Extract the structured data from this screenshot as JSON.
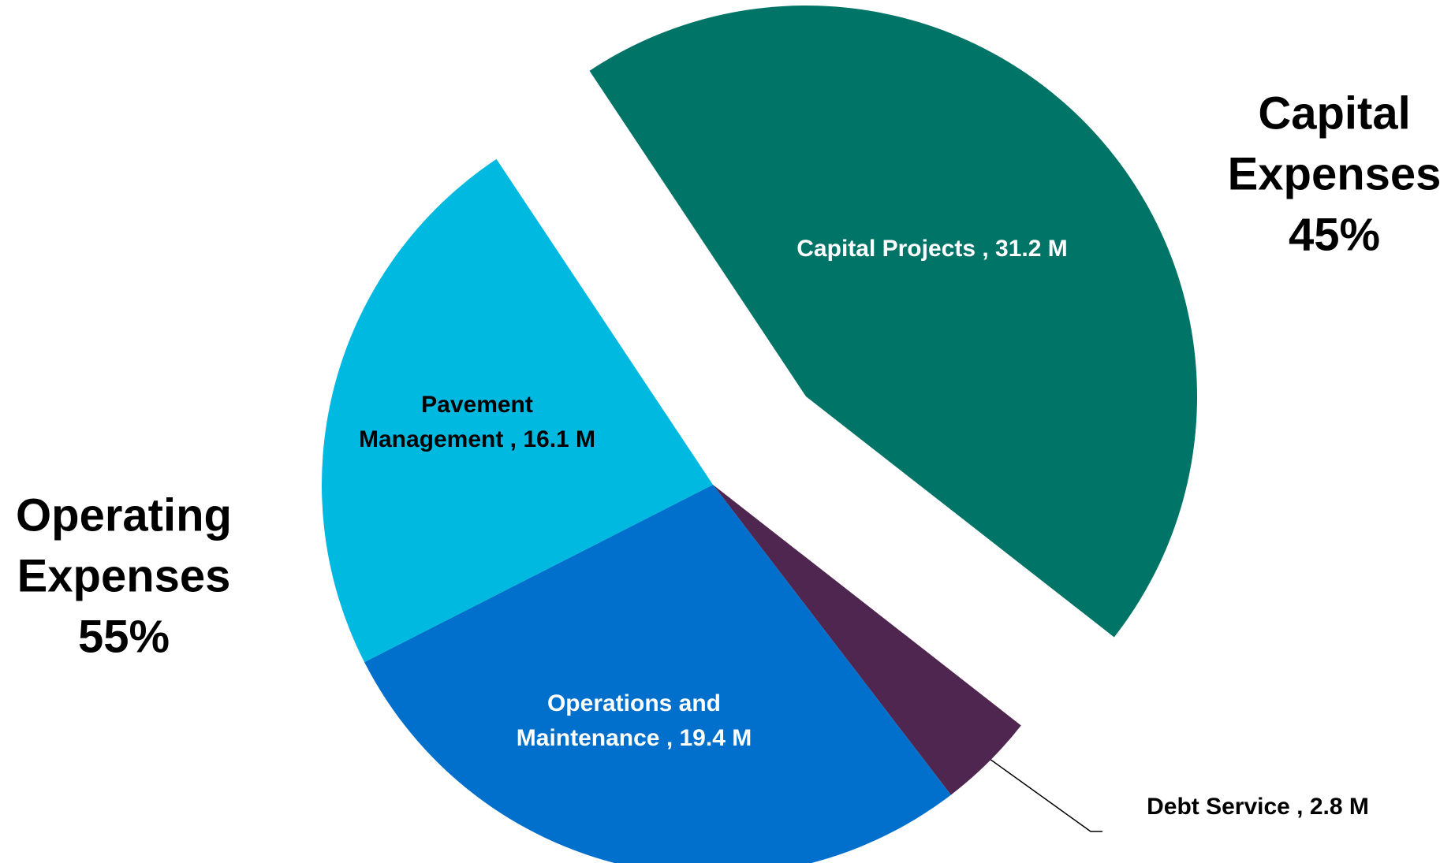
{
  "chart_data": {
    "type": "pie",
    "values": [
      31.2,
      2.8,
      19.4,
      16.1
    ],
    "value_labels": [
      [
        "Capital Projects , 31.2 M"
      ],
      [
        "Debt Service , 2.8 M"
      ],
      [
        "Operations and",
        "Maintenance , 19.4 M"
      ],
      [
        "Pavement",
        "Management , 16.1 M"
      ]
    ],
    "colors": [
      "#007466",
      "#4f2650",
      "#0070cc",
      "#00b9e0"
    ],
    "annotations": [
      {
        "lines": [
          "Capital",
          "Expenses"
        ],
        "value": 45,
        "label": "45%"
      },
      {
        "lines": [
          "Operating",
          "Expenses"
        ],
        "value": 55,
        "label": "55%"
      }
    ]
  }
}
